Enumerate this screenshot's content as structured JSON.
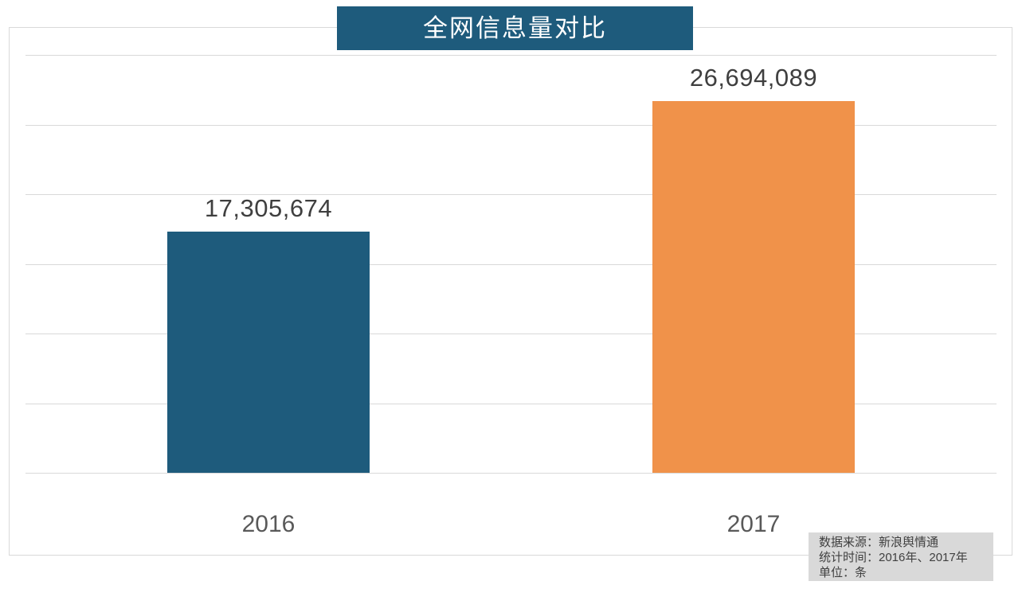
{
  "chart_data": {
    "type": "bar",
    "title": "全网信息量对比",
    "categories": [
      "2016",
      "2017"
    ],
    "values": [
      17305674,
      26694089
    ],
    "value_labels": [
      "17,305,674",
      "26,694,089"
    ],
    "ylim": [
      0,
      30000000
    ],
    "gridline_step": 5000000,
    "grid": "horizontal",
    "legend": "none",
    "xlabel": "",
    "ylabel": ""
  },
  "footnote": {
    "lines": [
      "数据来源：新浪舆情通",
      "统计时间：2016年、2017年",
      "单位：条"
    ]
  },
  "colors": {
    "title_bg": "#1e5b7c",
    "title_text": "#ffffff",
    "bar_2016": "#1e5b7c",
    "bar_2017": "#f0924a",
    "gridline": "#d9d9d9",
    "frame_border": "#d9d9d9",
    "value_label_text": "#3f3f3f",
    "axis_label_text": "#595959",
    "footnote_bg": "#d9d9d9",
    "footnote_text": "#404040"
  }
}
